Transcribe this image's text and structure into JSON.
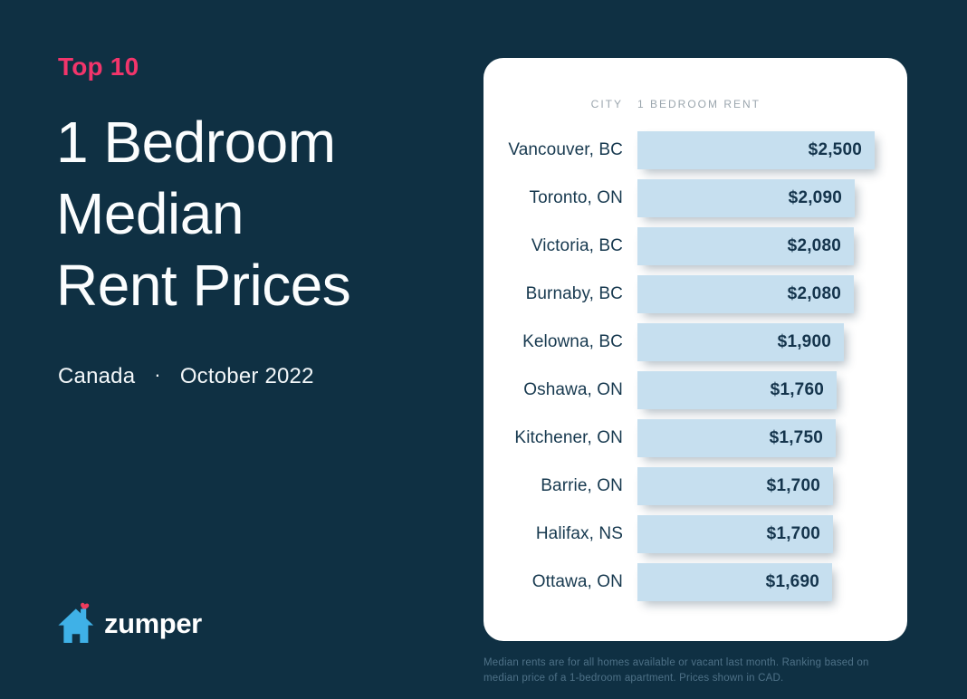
{
  "page": {
    "background": "#0F3043",
    "accent_pink": "#F2356B",
    "bar_blue": "#C6DFEF",
    "navy_text": "#14344C",
    "header_grey": "#9BA6AE"
  },
  "hero": {
    "eyebrow": "Top 10",
    "title_lines": [
      "1 Bedroom",
      "Median",
      "Rent Prices"
    ],
    "subtitle_left": "Canada",
    "subtitle_separator": "·",
    "subtitle_right": "October 2022"
  },
  "brand": {
    "wordmark": "zumper",
    "house_color": "#3FB1E7",
    "heart_color": "#EE3B5C"
  },
  "table": {
    "headers": {
      "city": "CITY",
      "rent": "1 BEDROOM RENT"
    },
    "rows": [
      {
        "city": "Vancouver, BC",
        "rent": "$2,500",
        "value": 2500
      },
      {
        "city": "Toronto, ON",
        "rent": "$2,090",
        "value": 2090
      },
      {
        "city": "Victoria, BC",
        "rent": "$2,080",
        "value": 2080
      },
      {
        "city": "Burnaby, BC",
        "rent": "$2,080",
        "value": 2080
      },
      {
        "city": "Kelowna, BC",
        "rent": "$1,900",
        "value": 1900
      },
      {
        "city": "Oshawa, ON",
        "rent": "$1,760",
        "value": 1760
      },
      {
        "city": "Kitchener, ON",
        "rent": "$1,750",
        "value": 1750
      },
      {
        "city": "Barrie, ON",
        "rent": "$1,700",
        "value": 1700
      },
      {
        "city": "Halifax, NS",
        "rent": "$1,700",
        "value": 1700
      },
      {
        "city": "Ottawa, ON",
        "rent": "$1,690",
        "value": 1690
      }
    ]
  },
  "footnote": "Median rents are for all homes available or vacant last month. Ranking based on median price of a 1-bedroom apartment. Prices shown in CAD.",
  "chart_data": {
    "type": "bar",
    "orientation": "horizontal",
    "title": "1 Bedroom Median Rent Prices",
    "subtitle": "Top 10 · Canada · October 2022",
    "xlabel": "1 BEDROOM RENT",
    "ylabel": "CITY",
    "categories": [
      "Vancouver, BC",
      "Toronto, ON",
      "Victoria, BC",
      "Burnaby, BC",
      "Kelowna, BC",
      "Oshawa, ON",
      "Kitchener, ON",
      "Barrie, ON",
      "Halifax, NS",
      "Ottawa, ON"
    ],
    "values": [
      2500,
      2090,
      2080,
      2080,
      1900,
      1760,
      1750,
      1700,
      1700,
      1690
    ],
    "value_labels": [
      "$2,500",
      "$2,090",
      "$2,080",
      "$2,080",
      "$1,900",
      "$1,760",
      "$1,750",
      "$1,700",
      "$1,700",
      "$1,690"
    ],
    "xlim": [
      0,
      2500
    ],
    "grid": false,
    "legend": false,
    "bar_color": "#C6DFEF",
    "note": "Median rents are for all homes available or vacant last month. Ranking based on median price of a 1-bedroom apartment. Prices shown in CAD."
  }
}
